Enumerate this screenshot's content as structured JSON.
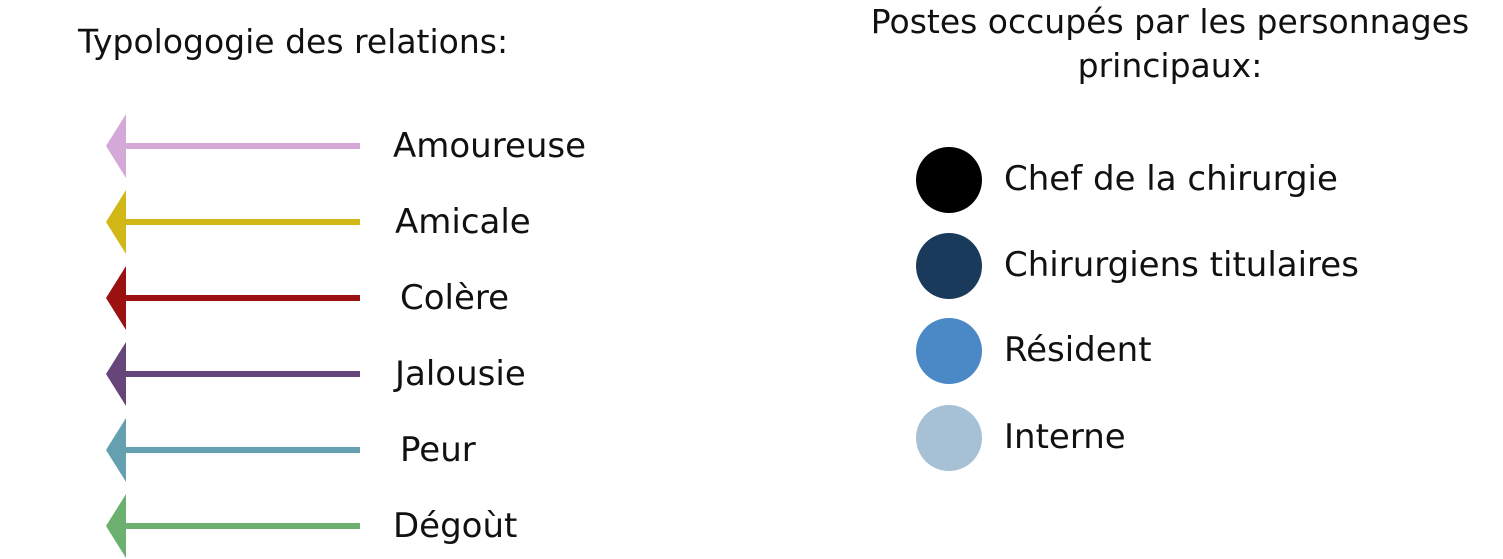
{
  "relations": {
    "title": "Typologogie des relations:",
    "items": [
      {
        "label": "Amoureuse",
        "color": "#d4a9d8"
      },
      {
        "label": "Amicale",
        "color": "#d2b817"
      },
      {
        "label": "Colère",
        "color": "#9b1010"
      },
      {
        "label": "Jalousie",
        "color": "#66457b"
      },
      {
        "label": "Peur",
        "color": "#64a0b0"
      },
      {
        "label": "Dégoùt",
        "color": "#6bb06e"
      }
    ]
  },
  "postes": {
    "title_line1": "Postes occupés par les personnages",
    "title_line2": "principaux:",
    "items": [
      {
        "label": "Chef de la chirurgie",
        "color": "#000000"
      },
      {
        "label": "Chirurgiens titulaires",
        "color": "#1a3a5c"
      },
      {
        "label": "Résident",
        "color": "#4a88c6"
      },
      {
        "label": "Interne",
        "color": "#a6c0d6"
      }
    ]
  }
}
